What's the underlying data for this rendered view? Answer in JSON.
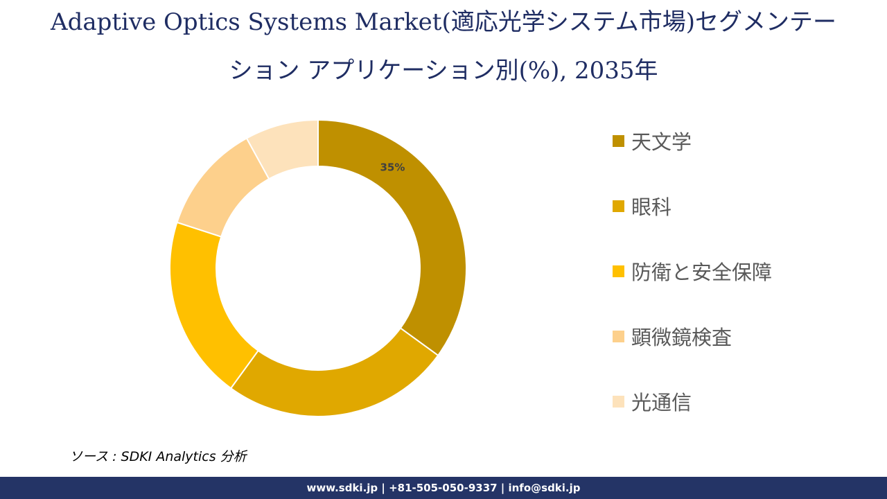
{
  "title": {
    "line1": "Adaptive Optics Systems Market(適応光学システム市場)セグメンテー",
    "line2": "ション アプリケーション別(%), 2035年"
  },
  "chart_data": {
    "type": "pie",
    "donut": true,
    "categories": [
      "天文学",
      "眼科",
      "防衛と安全保障",
      "顕微鏡検査",
      "光通信"
    ],
    "values": [
      35,
      25,
      20,
      12,
      8
    ],
    "data_labels": [
      "35%",
      "",
      "",
      "",
      ""
    ],
    "colors": [
      "#bf9000",
      "#e0a800",
      "#ffc000",
      "#fdd08c",
      "#fde2bb"
    ],
    "legend_position": "right"
  },
  "source": "ソース : SDKI Analytics 分析",
  "footer": {
    "contact": "www.sdki.jp | +81-505-050-9337 | info@sdki.jp"
  }
}
